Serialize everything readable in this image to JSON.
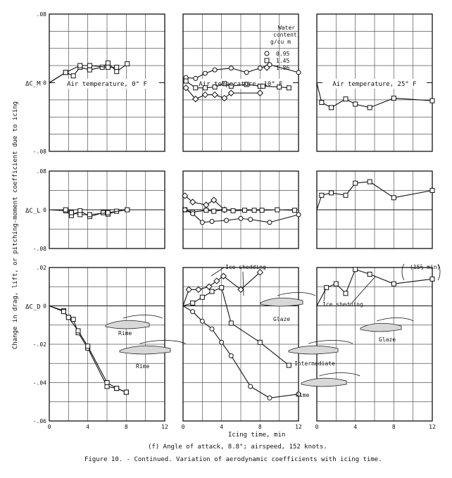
{
  "chart_data": {
    "type": "line",
    "x_axis_label": "Icing time, min",
    "y_axis_label": "Change in drag, lift, or pitching-moment coefficient due to icing",
    "x_ticks": [
      "0",
      "4",
      "8",
      "12"
    ],
    "xlim": [
      0,
      12
    ],
    "legend": {
      "title": [
        "Water",
        "content,",
        "g/cu m"
      ],
      "entries": [
        {
          "marker": "circle",
          "label": "0.95"
        },
        {
          "marker": "square",
          "label": "1.45"
        },
        {
          "marker": "diamond",
          "label": "1.86"
        }
      ],
      "placement": "top-right of middle column"
    },
    "columns": [
      {
        "title": "Air temperature, 0° F"
      },
      {
        "title": "Air temperature, 10° F"
      },
      {
        "title": "Air temperature, 25° F"
      }
    ],
    "rows": [
      {
        "ylabel": "ΔC_M",
        "ylim": [
          -0.08,
          0.08
        ],
        "tick_labels": [
          ".08",
          "0",
          "-.08"
        ]
      },
      {
        "ylabel": "ΔC_L",
        "ylim": [
          -0.08,
          0.08
        ],
        "tick_labels": [
          ".08",
          "0",
          "-.08"
        ]
      },
      {
        "ylabel": "ΔC_D",
        "ylim": [
          -0.06,
          0.02
        ],
        "tick_labels": [
          ".02",
          "0",
          "-.02",
          "-.04",
          "-.06"
        ]
      }
    ],
    "panels": [
      {
        "row": 0,
        "col": 0,
        "series": [
          {
            "marker": "square",
            "x": [
              0,
              1.7,
              2.5,
              3.2,
              4.2,
              5.5,
              6.1,
              7.0,
              8.1
            ],
            "y": [
              0,
              0.012,
              0.008,
              0.018,
              0.015,
              0.018,
              0.023,
              0.013,
              0.022
            ]
          },
          {
            "marker": "square",
            "x": [
              0,
              1.7,
              3.2,
              4.2,
              6.1,
              7.0
            ],
            "y": [
              0,
              0.012,
              0.02,
              0.02,
              0.018,
              0.018
            ]
          }
        ]
      },
      {
        "row": 0,
        "col": 1,
        "series": [
          {
            "marker": "circle",
            "x": [
              0.3,
              1.3,
              2.3,
              3.3,
              5,
              6.6,
              8,
              9,
              12
            ],
            "y": [
              0.006,
              0.005,
              0.011,
              0.015,
              0.017,
              0.012,
              0.017,
              0.021,
              0.012
            ]
          },
          {
            "marker": "square",
            "x": [
              0.3,
              1.3,
              2.3,
              3.3,
              4.3,
              5,
              6.6,
              8,
              8.3,
              10,
              11
            ],
            "y": [
              0.002,
              -0.006,
              -0.006,
              -0.005,
              -0.001,
              -0.004,
              -0.002,
              -0.004,
              -0.004,
              -0.005,
              -0.006
            ]
          },
          {
            "marker": "diamond",
            "x": [
              0.3,
              1.3,
              2.3,
              3.3,
              4.3,
              5,
              8
            ],
            "y": [
              -0.006,
              -0.019,
              -0.014,
              -0.014,
              -0.018,
              -0.012,
              -0.012
            ]
          }
        ]
      },
      {
        "row": 0,
        "col": 2,
        "series": [
          {
            "marker": "square",
            "x": [
              0,
              0.5,
              1.5,
              3,
              4,
              5.5,
              8,
              12
            ],
            "y": [
              0,
              -0.023,
              -0.029,
              -0.019,
              -0.025,
              -0.029,
              -0.018,
              -0.021
            ]
          }
        ]
      },
      {
        "row": 1,
        "col": 0,
        "series": [
          {
            "marker": "square",
            "x": [
              0,
              1.7,
              2.3,
              3.2,
              4.2,
              5.6,
              6.1,
              7.0,
              8.1
            ],
            "y": [
              0,
              -0.002,
              -0.012,
              -0.002,
              -0.014,
              -0.006,
              -0.009,
              -0.003,
              0
            ]
          },
          {
            "marker": "square",
            "x": [
              0,
              1.7,
              2.3,
              3.2,
              4.2,
              6.1,
              8.1
            ],
            "y": [
              0,
              0,
              -0.006,
              -0.01,
              -0.01,
              -0.006,
              0
            ]
          }
        ]
      },
      {
        "row": 1,
        "col": 1,
        "series": [
          {
            "marker": "diamond",
            "x": [
              0.2,
              1,
              2.4,
              3.2,
              4.3
            ],
            "y": [
              0.029,
              0.016,
              0.01,
              0.02,
              0
            ]
          },
          {
            "marker": "square",
            "x": [
              0.2,
              1,
              2.4,
              3.2,
              4.3,
              5.2,
              6.4,
              7.4,
              8.2,
              9.8,
              11.6
            ],
            "y": [
              0,
              -0.005,
              -0.001,
              -0.003,
              0,
              -0.002,
              -0.001,
              -0.001,
              -0.001,
              0,
              -0.001
            ]
          },
          {
            "marker": "circle",
            "x": [
              0.2,
              1,
              2,
              3,
              4.5,
              6,
              7,
              9,
              12
            ],
            "y": [
              0,
              -0.008,
              -0.026,
              -0.024,
              -0.022,
              -0.018,
              -0.02,
              -0.026,
              -0.01
            ]
          }
        ]
      },
      {
        "row": 1,
        "col": 2,
        "series": [
          {
            "marker": "square",
            "x": [
              0,
              0.5,
              1.5,
              3,
              4,
              5.5,
              8,
              12
            ],
            "y": [
              0,
              0.03,
              0.035,
              0.03,
              0.055,
              0.058,
              0.025,
              0.04
            ]
          }
        ]
      },
      {
        "row": 2,
        "col": 0,
        "series": [
          {
            "marker": "square",
            "x": [
              0,
              1.5,
              2,
              2.5,
              3,
              4,
              6,
              7,
              8
            ],
            "y": [
              0,
              -0.0025,
              -0.006,
              -0.007,
              -0.014,
              -0.022,
              -0.042,
              -0.043,
              -0.045
            ]
          },
          {
            "marker": "square",
            "x": [
              0,
              1.5,
              2,
              3,
              4,
              6,
              7,
              8
            ],
            "y": [
              0,
              -0.003,
              -0.006,
              -0.013,
              -0.021,
              -0.04,
              -0.043,
              -0.045
            ]
          }
        ]
      },
      {
        "row": 2,
        "col": 1,
        "series": [
          {
            "marker": "diamond",
            "x": [
              0,
              0.6,
              1.6,
              2.7,
              3.5,
              4.2,
              6,
              8
            ],
            "y": [
              0,
              0.0085,
              0.0085,
              0.01,
              0.013,
              0.0155,
              0.0085,
              0.0175
            ]
          },
          {
            "marker": "square",
            "x": [
              0,
              1,
              2,
              3,
              4,
              5,
              8,
              11
            ],
            "y": [
              0,
              0.0015,
              0.0045,
              0.0075,
              0.0095,
              -0.009,
              -0.019,
              -0.031
            ]
          },
          {
            "marker": "circle",
            "x": [
              0,
              1,
              2,
              3,
              4,
              5,
              7,
              9,
              12
            ],
            "y": [
              0,
              -0.003,
              -0.008,
              -0.012,
              -0.019,
              -0.026,
              -0.042,
              -0.048,
              -0.046
            ]
          }
        ]
      },
      {
        "row": 2,
        "col": 2,
        "series": [
          {
            "marker": "square",
            "x": [
              0,
              1,
              2,
              3,
              4,
              5.5,
              8,
              12
            ],
            "y": [
              0,
              0.0095,
              0.0115,
              0.0065,
              0.019,
              0.0165,
              0.0115,
              0.014
            ]
          }
        ]
      }
    ],
    "annotations": [
      {
        "label": "Ice shedding",
        "panel": "row 2, col 1"
      },
      {
        "label": "Ice shedding",
        "panel": "row 2, col 2"
      },
      {
        "label": "(15⅔ min)",
        "panel": "row 2, col 2"
      },
      {
        "label": "Rime",
        "panel": "row 2, col 0"
      },
      {
        "label": "Rime",
        "panel": "row 2, col 0"
      },
      {
        "label": "Glaze",
        "panel": "row 2, col 1"
      },
      {
        "label": "Glaze",
        "panel": "row 2, col 2"
      },
      {
        "label": "Intermediate",
        "panel": "row 2, col 1"
      },
      {
        "label": "Rime",
        "panel": "row 2, col 1"
      }
    ],
    "subcaption": "(f) Angle of attack, 8.8°; airspeed, 152 knots.",
    "caption": "Figure 10. - Continued.  Variation of aerodynamic coefficients with icing time."
  }
}
